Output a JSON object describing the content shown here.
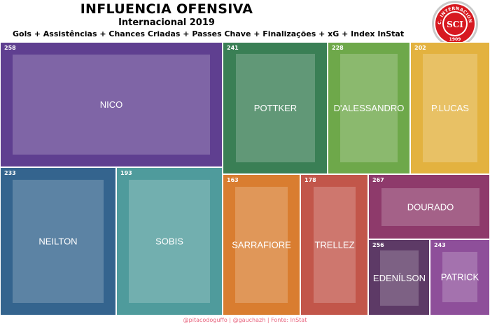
{
  "header": {
    "title": "INFLUENCIA OFENSIVA",
    "subtitle": "Internacional 2019",
    "description": "Gols + Assistências + Chances Criadas + Passes Chave + Finalizações + xG + Index InStat"
  },
  "logo": {
    "text": "S.C. INTERNACIONAL",
    "year": "1909",
    "monogram": "SCI",
    "color": "#d71920"
  },
  "chart_data": {
    "type": "treemap",
    "title": "INFLUENCIA OFENSIVA",
    "subtitle": "Internacional 2019",
    "nodes": [
      {
        "name": "NICO",
        "value": 258,
        "color": "#5f3f90"
      },
      {
        "name": "NEILTON",
        "value": 233,
        "color": "#34648e"
      },
      {
        "name": "SOBIS",
        "value": 193,
        "color": "#4f9b9c"
      },
      {
        "name": "POTTKER",
        "value": 241,
        "color": "#3a7f55"
      },
      {
        "name": "D'ALESSANDRO",
        "value": 228,
        "color": "#6ea84a"
      },
      {
        "name": "P.LUCAS",
        "value": 202,
        "color": "#e3b23f"
      },
      {
        "name": "SARRAFIORE",
        "value": 163,
        "color": "#d97d30"
      },
      {
        "name": "TRELLEZ",
        "value": 178,
        "color": "#c2564a"
      },
      {
        "name": "DOURADO",
        "value": 267,
        "color": "#8e3a6b"
      },
      {
        "name": "EDENÍLSON",
        "value": 256,
        "color": "#5d3a66"
      },
      {
        "name": "PATRICK",
        "value": 243,
        "color": "#8e4f9a"
      }
    ]
  },
  "footer": {
    "credits": "@pitacodoguffo | @gauchazh | Fonte: InStat"
  }
}
